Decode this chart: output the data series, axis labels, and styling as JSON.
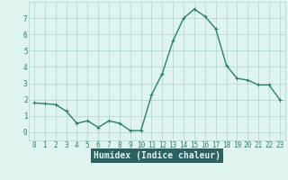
{
  "x": [
    0,
    1,
    2,
    3,
    4,
    5,
    6,
    7,
    8,
    9,
    10,
    11,
    12,
    13,
    14,
    15,
    16,
    17,
    18,
    19,
    20,
    21,
    22,
    23
  ],
  "y": [
    1.8,
    1.75,
    1.7,
    1.3,
    0.55,
    0.7,
    0.3,
    0.7,
    0.55,
    0.1,
    0.1,
    2.3,
    3.6,
    5.6,
    7.0,
    7.55,
    7.1,
    6.35,
    4.1,
    3.3,
    3.2,
    2.9,
    2.9,
    2.0
  ],
  "line_color": "#2d7d6e",
  "marker": "+",
  "marker_size": 3,
  "line_width": 1.0,
  "bg_color": "#dff4f0",
  "grid_color": "#afd4ce",
  "xlabel": "Humidex (Indice chaleur)",
  "xlabel_fontsize": 7,
  "xlim": [
    -0.5,
    23.5
  ],
  "ylim": [
    -0.5,
    8.0
  ],
  "yticks": [
    0,
    1,
    2,
    3,
    4,
    5,
    6,
    7
  ],
  "xticks": [
    0,
    1,
    2,
    3,
    4,
    5,
    6,
    7,
    8,
    9,
    10,
    11,
    12,
    13,
    14,
    15,
    16,
    17,
    18,
    19,
    20,
    21,
    22,
    23
  ],
  "tick_fontsize": 5.5,
  "tick_color": "#2d7d6e",
  "xlabel_bg": "#2d6060",
  "xlabel_fg": "#dff4f0"
}
